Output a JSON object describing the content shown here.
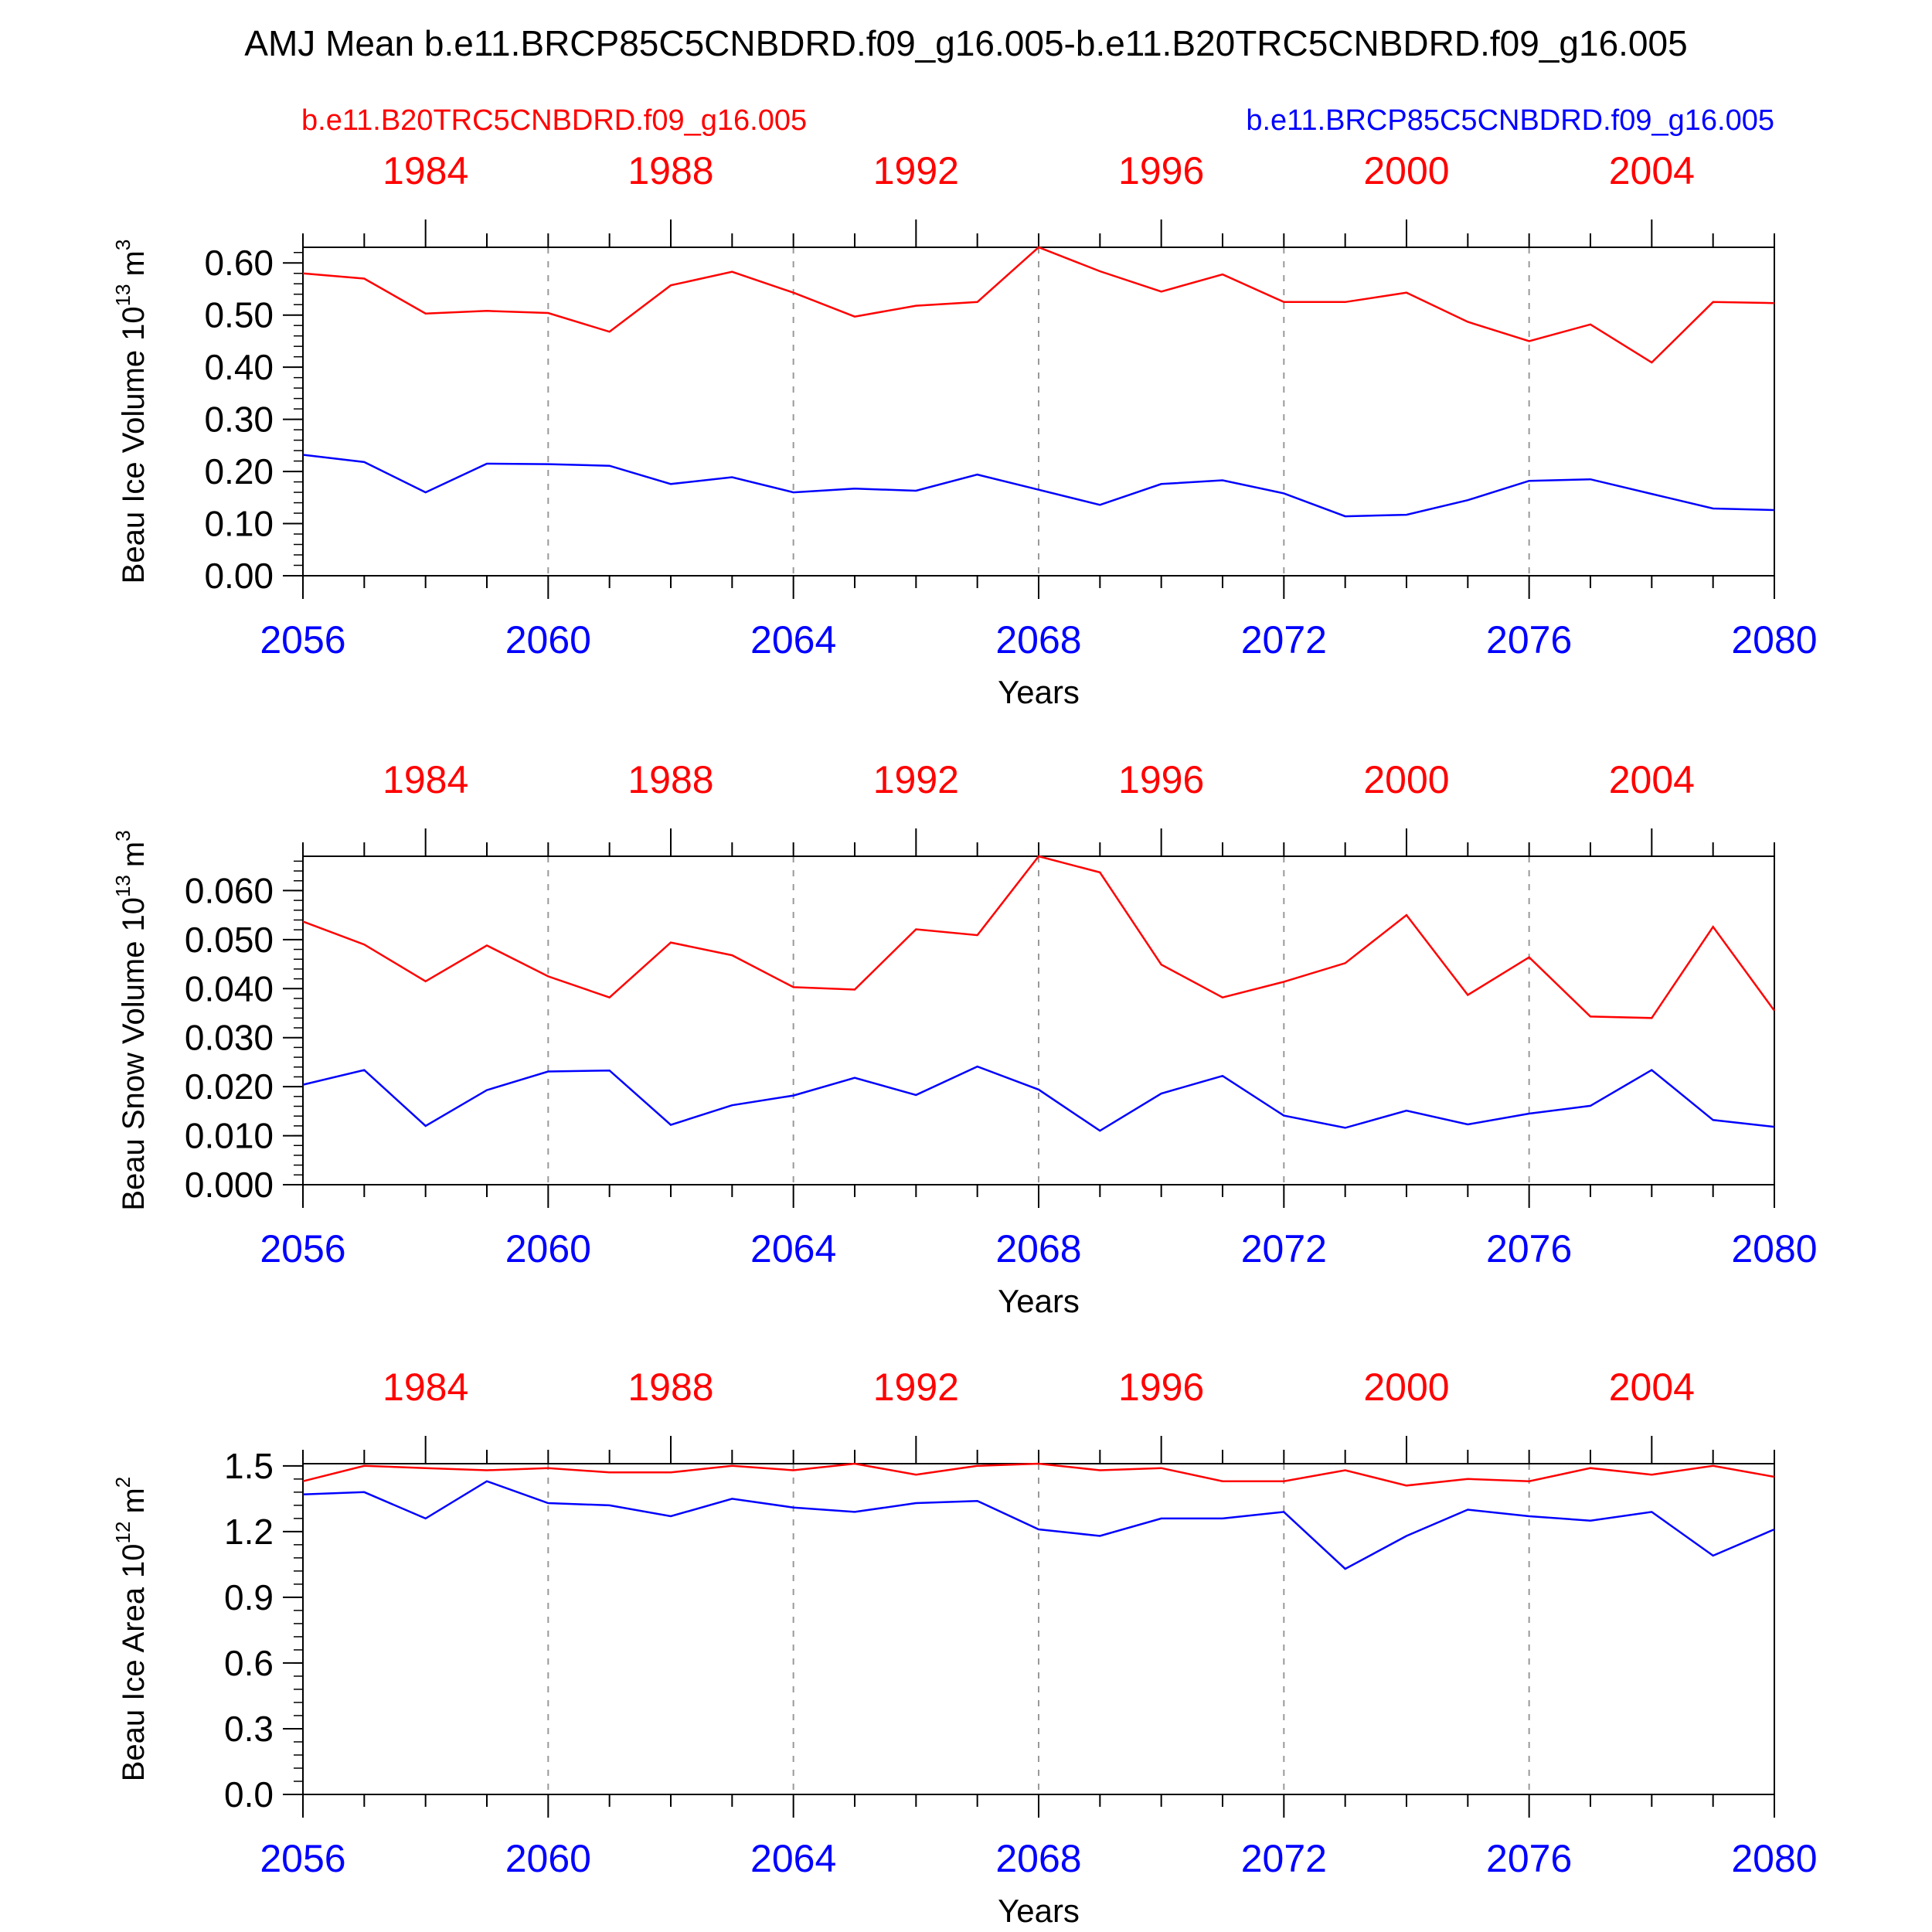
{
  "title": "AMJ Mean b.e11.BRCP85C5CNBDRD.f09_g16.005-b.e11.B20TRC5CNBDRD.f09_g16.005",
  "legend": {
    "left_label": "b.e11.B20TRC5CNBDRD.f09_g16.005",
    "right_label": "b.e11.BRCP85C5CNBDRD.f09_g16.005"
  },
  "colors": {
    "red_series": "#ff0000",
    "blue_series": "#0000ff",
    "axes": "#000000",
    "grid": "#999999"
  },
  "chart_data": [
    {
      "type": "line",
      "ylabel": "Beau Ice Volume",
      "yunit_base": "10",
      "yunit_exp": "13",
      "yunit_sym": "m",
      "yunit_pow": "3",
      "xlabel": "Years",
      "x": [
        2056,
        2057,
        2058,
        2059,
        2060,
        2061,
        2062,
        2063,
        2064,
        2065,
        2066,
        2067,
        2068,
        2069,
        2070,
        2071,
        2072,
        2073,
        2074,
        2075,
        2076,
        2077,
        2078,
        2079,
        2080
      ],
      "xlim": [
        2056,
        2080
      ],
      "ylim": [
        0,
        0.63
      ],
      "yticks": [
        0.0,
        0.1,
        0.2,
        0.3,
        0.4,
        0.5,
        0.6
      ],
      "ytick_labels": [
        "0.00",
        "0.10",
        "0.20",
        "0.30",
        "0.40",
        "0.50",
        "0.60"
      ],
      "bottom_ticks": [
        "2056",
        "2060",
        "2064",
        "2068",
        "2072",
        "2076",
        "2080"
      ],
      "top_ticks": [
        "1984",
        "1988",
        "1992",
        "1996",
        "2000",
        "2004"
      ],
      "series": [
        {
          "name": "b.e11.B20TRC5CNBDRD.f09_g16.005",
          "color": "red",
          "values": [
            0.58,
            0.57,
            0.503,
            0.508,
            0.504,
            0.468,
            0.557,
            0.583,
            0.543,
            0.497,
            0.518,
            0.525,
            0.63,
            0.584,
            0.545,
            0.578,
            0.525,
            0.525,
            0.543,
            0.487,
            0.45,
            0.482,
            0.409,
            0.525,
            0.523
          ]
        },
        {
          "name": "b.e11.BRCP85C5CNBDRD.f09_g16.005",
          "color": "blue",
          "values": [
            0.232,
            0.218,
            0.16,
            0.215,
            0.214,
            0.211,
            0.176,
            0.189,
            0.16,
            0.167,
            0.163,
            0.194,
            0.165,
            0.136,
            0.176,
            0.183,
            0.158,
            0.114,
            0.117,
            0.145,
            0.182,
            0.185,
            0.157,
            0.129,
            0.126
          ]
        }
      ]
    },
    {
      "type": "line",
      "ylabel": "Beau Snow Volume",
      "yunit_base": "10",
      "yunit_exp": "13",
      "yunit_sym": "m",
      "yunit_pow": "3",
      "xlabel": "Years",
      "x": [
        2056,
        2057,
        2058,
        2059,
        2060,
        2061,
        2062,
        2063,
        2064,
        2065,
        2066,
        2067,
        2068,
        2069,
        2070,
        2071,
        2072,
        2073,
        2074,
        2075,
        2076,
        2077,
        2078,
        2079,
        2080
      ],
      "xlim": [
        2056,
        2080
      ],
      "ylim": [
        0,
        0.067
      ],
      "yticks": [
        0.0,
        0.01,
        0.02,
        0.03,
        0.04,
        0.05,
        0.06
      ],
      "ytick_labels": [
        "0.000",
        "0.010",
        "0.020",
        "0.030",
        "0.040",
        "0.050",
        "0.060"
      ],
      "bottom_ticks": [
        "2056",
        "2060",
        "2064",
        "2068",
        "2072",
        "2076",
        "2080"
      ],
      "top_ticks": [
        "1984",
        "1988",
        "1992",
        "1996",
        "2000",
        "2004"
      ],
      "series": [
        {
          "name": "b.e11.B20TRC5CNBDRD.f09_g16.005",
          "color": "red",
          "values": [
            0.0537,
            0.049,
            0.0415,
            0.0488,
            0.0425,
            0.0382,
            0.0494,
            0.0468,
            0.0403,
            0.0398,
            0.0521,
            0.0509,
            0.067,
            0.0637,
            0.0449,
            0.0382,
            0.0414,
            0.0452,
            0.055,
            0.0387,
            0.0464,
            0.0343,
            0.034,
            0.0526,
            0.0355
          ]
        },
        {
          "name": "b.e11.BRCP85C5CNBDRD.f09_g16.005",
          "color": "blue",
          "values": [
            0.0204,
            0.0234,
            0.012,
            0.0193,
            0.0231,
            0.0233,
            0.0122,
            0.0162,
            0.0182,
            0.0218,
            0.0183,
            0.0241,
            0.0194,
            0.011,
            0.0186,
            0.0222,
            0.0141,
            0.0116,
            0.0151,
            0.0123,
            0.0145,
            0.0161,
            0.0234,
            0.0132,
            0.0118
          ]
        }
      ]
    },
    {
      "type": "line",
      "ylabel": "Beau Ice Area",
      "yunit_base": "10",
      "yunit_exp": "12",
      "yunit_sym": "m",
      "yunit_pow": "2",
      "xlabel": "Years",
      "x": [
        2056,
        2057,
        2058,
        2059,
        2060,
        2061,
        2062,
        2063,
        2064,
        2065,
        2066,
        2067,
        2068,
        2069,
        2070,
        2071,
        2072,
        2073,
        2074,
        2075,
        2076,
        2077,
        2078,
        2079,
        2080
      ],
      "xlim": [
        2056,
        2080
      ],
      "ylim": [
        0,
        1.51
      ],
      "yticks": [
        0.0,
        0.3,
        0.6,
        0.9,
        1.2,
        1.5
      ],
      "ytick_labels": [
        "0.0",
        "0.3",
        "0.6",
        "0.9",
        "1.2",
        "1.5"
      ],
      "bottom_ticks": [
        "2056",
        "2060",
        "2064",
        "2068",
        "2072",
        "2076",
        "2080"
      ],
      "top_ticks": [
        "1984",
        "1988",
        "1992",
        "1996",
        "2000",
        "2004"
      ],
      "series": [
        {
          "name": "b.e11.B20TRC5CNBDRD.f09_g16.005",
          "color": "red",
          "values": [
            1.43,
            1.5,
            1.49,
            1.48,
            1.49,
            1.47,
            1.47,
            1.5,
            1.48,
            1.51,
            1.46,
            1.5,
            1.51,
            1.48,
            1.49,
            1.43,
            1.43,
            1.48,
            1.41,
            1.44,
            1.43,
            1.49,
            1.46,
            1.5,
            1.45
          ]
        },
        {
          "name": "b.e11.BRCP85C5CNBDRD.f09_g16.005",
          "color": "blue",
          "values": [
            1.37,
            1.38,
            1.26,
            1.43,
            1.33,
            1.32,
            1.27,
            1.35,
            1.31,
            1.29,
            1.33,
            1.34,
            1.21,
            1.18,
            1.26,
            1.26,
            1.29,
            1.03,
            1.18,
            1.3,
            1.27,
            1.25,
            1.29,
            1.09,
            1.21
          ]
        }
      ]
    }
  ]
}
